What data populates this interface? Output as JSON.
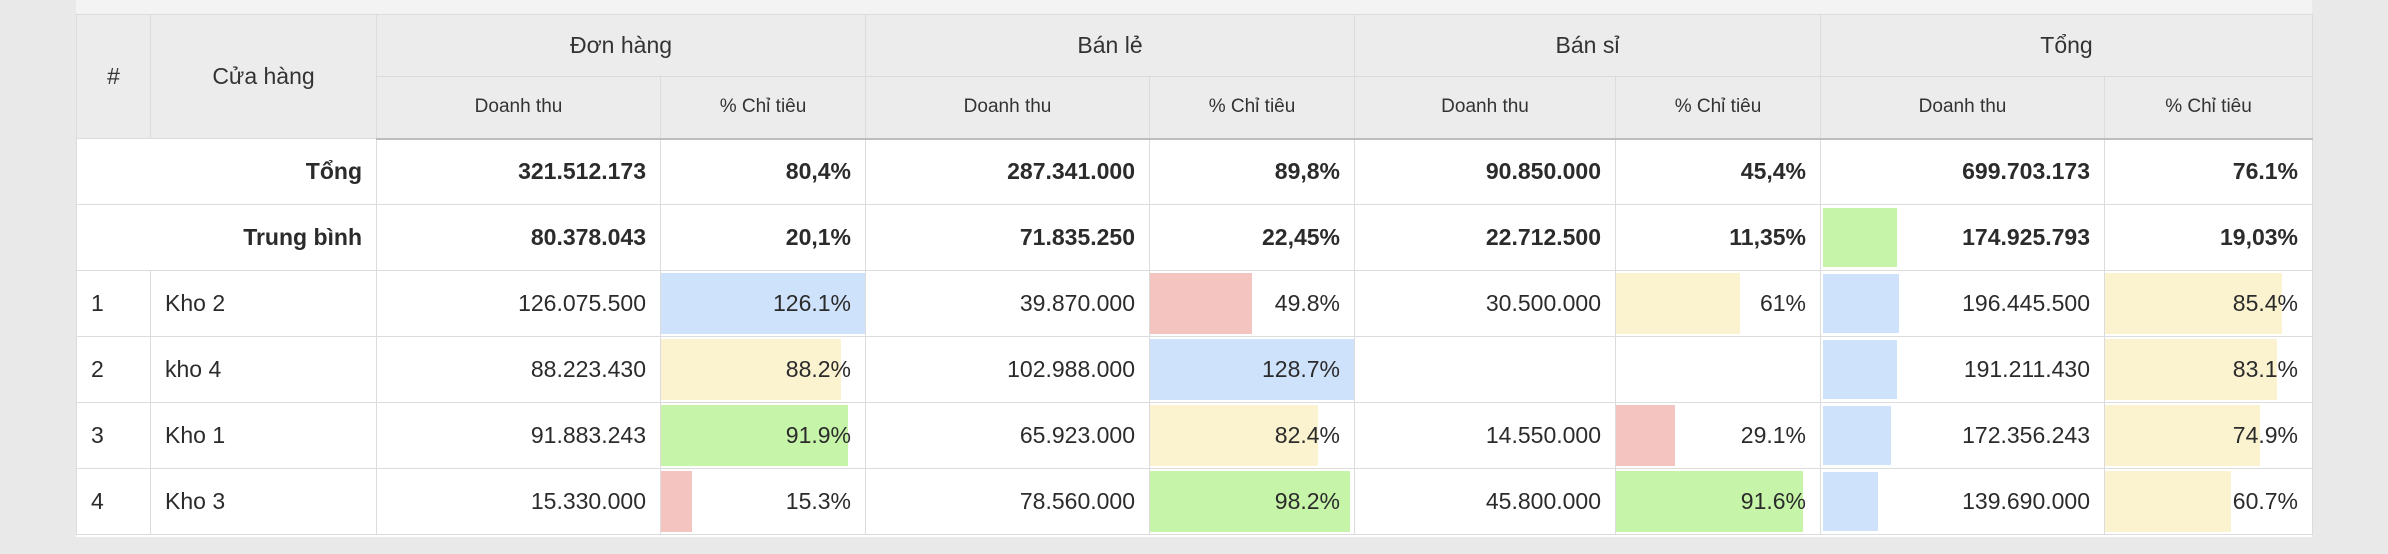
{
  "headers": {
    "index": "#",
    "store": "Cửa hàng",
    "groups": [
      "Đơn hàng",
      "Bán lẻ",
      "Bán sỉ",
      "Tổng"
    ],
    "revenue": "Doanh thu",
    "target_pct": "% Chỉ tiêu"
  },
  "colors": {
    "blue": "#cfe2fb",
    "yellow": "#fbf3cf",
    "red": "#f4c4c0",
    "green": "#c6f4a8"
  },
  "summary": [
    {
      "label": "Tổng",
      "don_hang": {
        "revenue": "321.512.173",
        "pct": "80,4%"
      },
      "ban_le": {
        "revenue": "287.341.000",
        "pct": "89,8%"
      },
      "ban_si": {
        "revenue": "90.850.000",
        "pct": "45,4%"
      },
      "tong": {
        "revenue": "699.703.173",
        "pct": "76.1%"
      }
    },
    {
      "label": "Trung bình",
      "don_hang": {
        "revenue": "80.378.043",
        "pct": "20,1%"
      },
      "ban_le": {
        "revenue": "71.835.250",
        "pct": "22,45%"
      },
      "ban_si": {
        "revenue": "22.712.500",
        "pct": "11,35%"
      },
      "tong": {
        "revenue": "174.925.793",
        "pct": "19,03%",
        "bar": 0.26,
        "bar_color": "green"
      }
    }
  ],
  "rows": [
    {
      "index": "1",
      "store": "Kho 2",
      "don_hang": {
        "revenue": "126.075.500",
        "pct": "126.1%",
        "bar": 1.0,
        "bar_color": "blue"
      },
      "ban_le": {
        "revenue": "39.870.000",
        "pct": "49.8%",
        "bar": 0.498,
        "bar_color": "red"
      },
      "ban_si": {
        "revenue": "30.500.000",
        "pct": "61%",
        "bar": 0.61,
        "bar_color": "yellow"
      },
      "tong": {
        "revenue": "196.445.500",
        "pct": "85.4%",
        "bar": 0.27,
        "bar_color": "blue",
        "pct_bar": 0.854,
        "pct_bar_color": "yellow"
      }
    },
    {
      "index": "2",
      "store": "kho 4",
      "don_hang": {
        "revenue": "88.223.430",
        "pct": "88.2%",
        "bar": 0.882,
        "bar_color": "yellow"
      },
      "ban_le": {
        "revenue": "102.988.000",
        "pct": "128.7%",
        "bar": 1.0,
        "bar_color": "blue"
      },
      "ban_si": {
        "revenue": "",
        "pct": ""
      },
      "tong": {
        "revenue": "191.211.430",
        "pct": "83.1%",
        "bar": 0.26,
        "bar_color": "blue",
        "pct_bar": 0.831,
        "pct_bar_color": "yellow"
      }
    },
    {
      "index": "3",
      "store": "Kho 1",
      "don_hang": {
        "revenue": "91.883.243",
        "pct": "91.9%",
        "bar": 0.919,
        "bar_color": "green"
      },
      "ban_le": {
        "revenue": "65.923.000",
        "pct": "82.4%",
        "bar": 0.824,
        "bar_color": "yellow"
      },
      "ban_si": {
        "revenue": "14.550.000",
        "pct": "29.1%",
        "bar": 0.291,
        "bar_color": "red"
      },
      "tong": {
        "revenue": "172.356.243",
        "pct": "74.9%",
        "bar": 0.24,
        "bar_color": "blue",
        "pct_bar": 0.749,
        "pct_bar_color": "yellow"
      }
    },
    {
      "index": "4",
      "store": "Kho 3",
      "don_hang": {
        "revenue": "15.330.000",
        "pct": "15.3%",
        "bar": 0.153,
        "bar_color": "red"
      },
      "ban_le": {
        "revenue": "78.560.000",
        "pct": "98.2%",
        "bar": 0.982,
        "bar_color": "green"
      },
      "ban_si": {
        "revenue": "45.800.000",
        "pct": "91.6%",
        "bar": 0.916,
        "bar_color": "green"
      },
      "tong": {
        "revenue": "139.690.000",
        "pct": "60.7%",
        "bar": 0.195,
        "bar_color": "blue",
        "pct_bar": 0.607,
        "pct_bar_color": "yellow"
      }
    }
  ]
}
